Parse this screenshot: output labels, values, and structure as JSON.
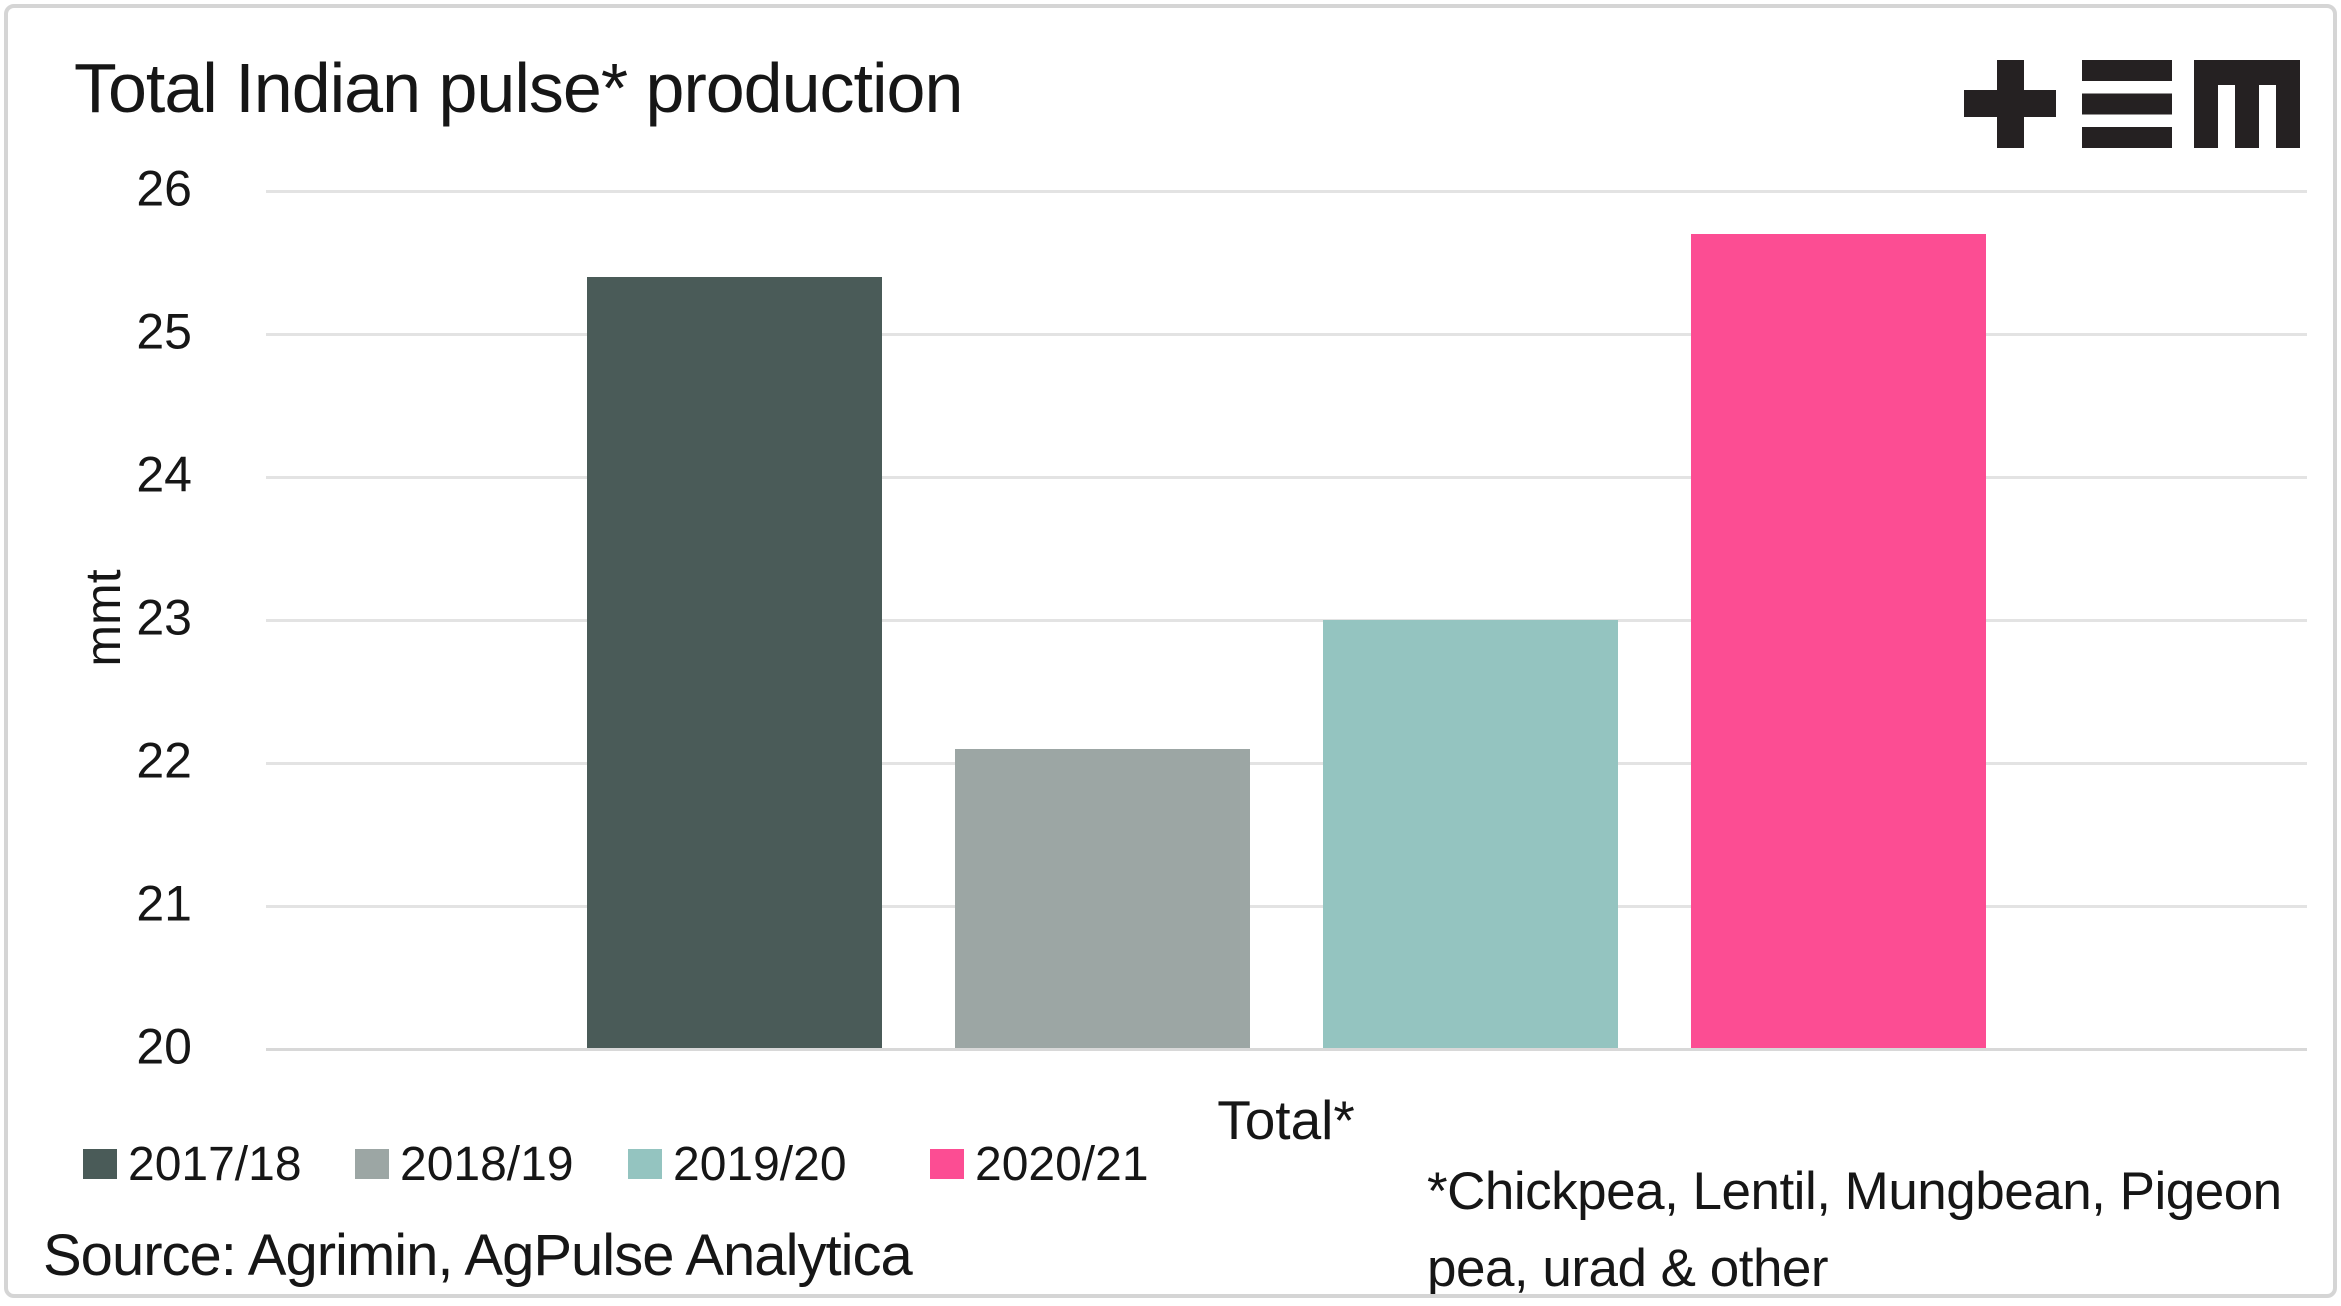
{
  "header": {
    "title": "Total Indian pulse* production"
  },
  "brand": {
    "logo_name": "plus-triple-bar-m-logo",
    "logo_color": "#252122"
  },
  "y_axis": {
    "label": "mmt",
    "ticks": [
      26,
      25,
      24,
      23,
      22,
      21,
      20
    ]
  },
  "x_axis": {
    "label": "Total*"
  },
  "legend": {
    "position": "bottom-left",
    "items": [
      "2017/18",
      "2018/19",
      "2019/20",
      "2020/21"
    ]
  },
  "source": {
    "text": "Source: Agrimin, AgPulse Analytica"
  },
  "footnote": {
    "full": "*Chickpea, Lentil, Mungbean, Pigeon pea, urad & other",
    "line1": "*Chickpea, Lentil, Mungbean, Pigeon",
    "line2": "pea, urad & other"
  },
  "colors": {
    "grid": "#e3e3e3",
    "axis_baseline": "#d8d8d8",
    "text": "#161616",
    "frame_border": "#d5d5d5",
    "background": "#ffffff"
  },
  "chart_data": {
    "type": "bar",
    "title": "Total Indian pulse* production",
    "xlabel": "",
    "ylabel": "mmt",
    "categories": [
      "Total*"
    ],
    "series": [
      {
        "name": "2017/18",
        "values": [
          25.4
        ],
        "color": "#4a5b58"
      },
      {
        "name": "2018/19",
        "values": [
          22.1
        ],
        "color": "#9ca6a4"
      },
      {
        "name": "2019/20",
        "values": [
          23.0
        ],
        "color": "#94c4c0"
      },
      {
        "name": "2020/21",
        "values": [
          25.7
        ],
        "color": "#fc4d93"
      }
    ],
    "ylim": [
      20,
      26
    ],
    "yticks": [
      26,
      25,
      24,
      23,
      22,
      21,
      20
    ],
    "grid": true,
    "legend_position": "bottom-left"
  }
}
